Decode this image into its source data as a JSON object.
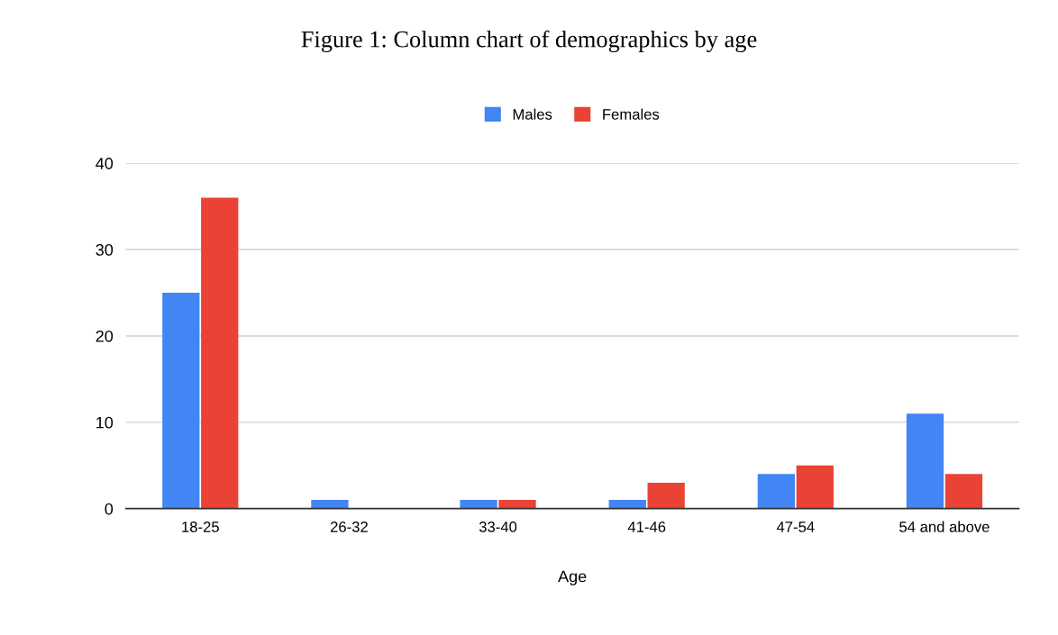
{
  "chart_data": {
    "type": "bar",
    "title": "Figure 1: Column chart of demographics by age",
    "xlabel": "Age",
    "categories": [
      "18-25",
      "26-32",
      "33-40",
      "41-46",
      "47-54",
      "54 and above"
    ],
    "series": [
      {
        "name": "Males",
        "color": "#4285f4",
        "values": [
          25,
          1,
          1,
          1,
          4,
          11
        ]
      },
      {
        "name": "Females",
        "color": "#ea4335",
        "values": [
          36,
          0,
          1,
          3,
          5,
          4
        ]
      }
    ],
    "ylim": [
      0,
      40
    ],
    "yticks": [
      0,
      10,
      20,
      30,
      40
    ],
    "grid": "y",
    "legend": "top"
  }
}
